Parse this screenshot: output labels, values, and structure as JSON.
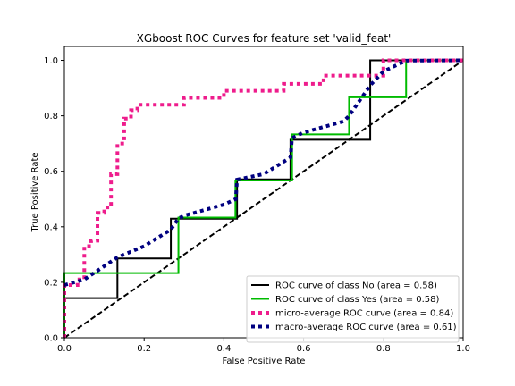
{
  "chart_data": {
    "type": "line",
    "title": "XGboost ROC Curves for feature set 'valid_feat'",
    "xlabel": "False Positive Rate",
    "ylabel": "True Positive Rate",
    "xlim": [
      0.0,
      1.0
    ],
    "ylim": [
      0.0,
      1.05
    ],
    "xticks": [
      "0.0",
      "0.2",
      "0.4",
      "0.6",
      "0.8",
      "1.0"
    ],
    "yticks": [
      "0.0",
      "0.2",
      "0.4",
      "0.6",
      "0.8",
      "1.0"
    ],
    "legend_position": "lower-right",
    "grid": false,
    "series": [
      {
        "name": "ROC curve of class No (area = 0.58)",
        "color": "#000000",
        "style": "solid",
        "x": [
          0,
          0,
          0.133,
          0.133,
          0.267,
          0.267,
          0.433,
          0.433,
          0.567,
          0.567,
          0.767,
          0.767,
          1.0
        ],
        "y": [
          0,
          0.143,
          0.143,
          0.286,
          0.286,
          0.429,
          0.429,
          0.571,
          0.571,
          0.714,
          0.714,
          1.0,
          1.0
        ]
      },
      {
        "name": "ROC curve of class Yes (area = 0.58)",
        "color": "#00bb00",
        "style": "solid",
        "x": [
          0,
          0,
          0.286,
          0.286,
          0.429,
          0.429,
          0.571,
          0.571,
          0.714,
          0.714,
          0.857,
          0.857,
          1.0
        ],
        "y": [
          0,
          0.233,
          0.233,
          0.433,
          0.433,
          0.567,
          0.567,
          0.733,
          0.733,
          0.867,
          0.867,
          1.0,
          1.0
        ]
      },
      {
        "name": "micro-average ROC curve (area = 0.84)",
        "color": "#ee1c8c",
        "style": "dotted",
        "x": [
          0,
          0,
          0.033,
          0.033,
          0.05,
          0.05,
          0.067,
          0.067,
          0.083,
          0.083,
          0.1,
          0.1,
          0.117,
          0.117,
          0.133,
          0.133,
          0.15,
          0.15,
          0.167,
          0.167,
          0.183,
          0.183,
          0.2,
          0.2,
          0.233,
          0.233,
          0.3,
          0.3,
          0.4,
          0.4,
          0.55,
          0.55,
          0.65,
          0.65,
          0.8,
          0.8,
          1.0
        ],
        "y": [
          0,
          0.19,
          0.19,
          0.21,
          0.21,
          0.33,
          0.33,
          0.35,
          0.35,
          0.45,
          0.45,
          0.47,
          0.47,
          0.59,
          0.59,
          0.7,
          0.7,
          0.79,
          0.79,
          0.82,
          0.82,
          0.84,
          0.84,
          0.84,
          0.84,
          0.84,
          0.84,
          0.865,
          0.865,
          0.89,
          0.89,
          0.915,
          0.915,
          0.945,
          0.945,
          1.0,
          1.0
        ]
      },
      {
        "name": "macro-average ROC curve (area = 0.61)",
        "color": "#000080",
        "style": "dotted",
        "x": [
          0,
          0.05,
          0.133,
          0.2,
          0.267,
          0.286,
          0.3,
          0.4,
          0.43,
          0.433,
          0.5,
          0.567,
          0.571,
          0.6,
          0.7,
          0.714,
          0.767,
          0.8,
          0.857,
          1.0
        ],
        "y": [
          0.19,
          0.21,
          0.29,
          0.33,
          0.39,
          0.43,
          0.44,
          0.48,
          0.5,
          0.57,
          0.59,
          0.65,
          0.72,
          0.74,
          0.78,
          0.8,
          0.91,
          0.96,
          0.999,
          1.0
        ]
      },
      {
        "name": "",
        "color": "#000000",
        "style": "dashed",
        "x": [
          0,
          1
        ],
        "y": [
          0,
          1
        ]
      }
    ]
  }
}
